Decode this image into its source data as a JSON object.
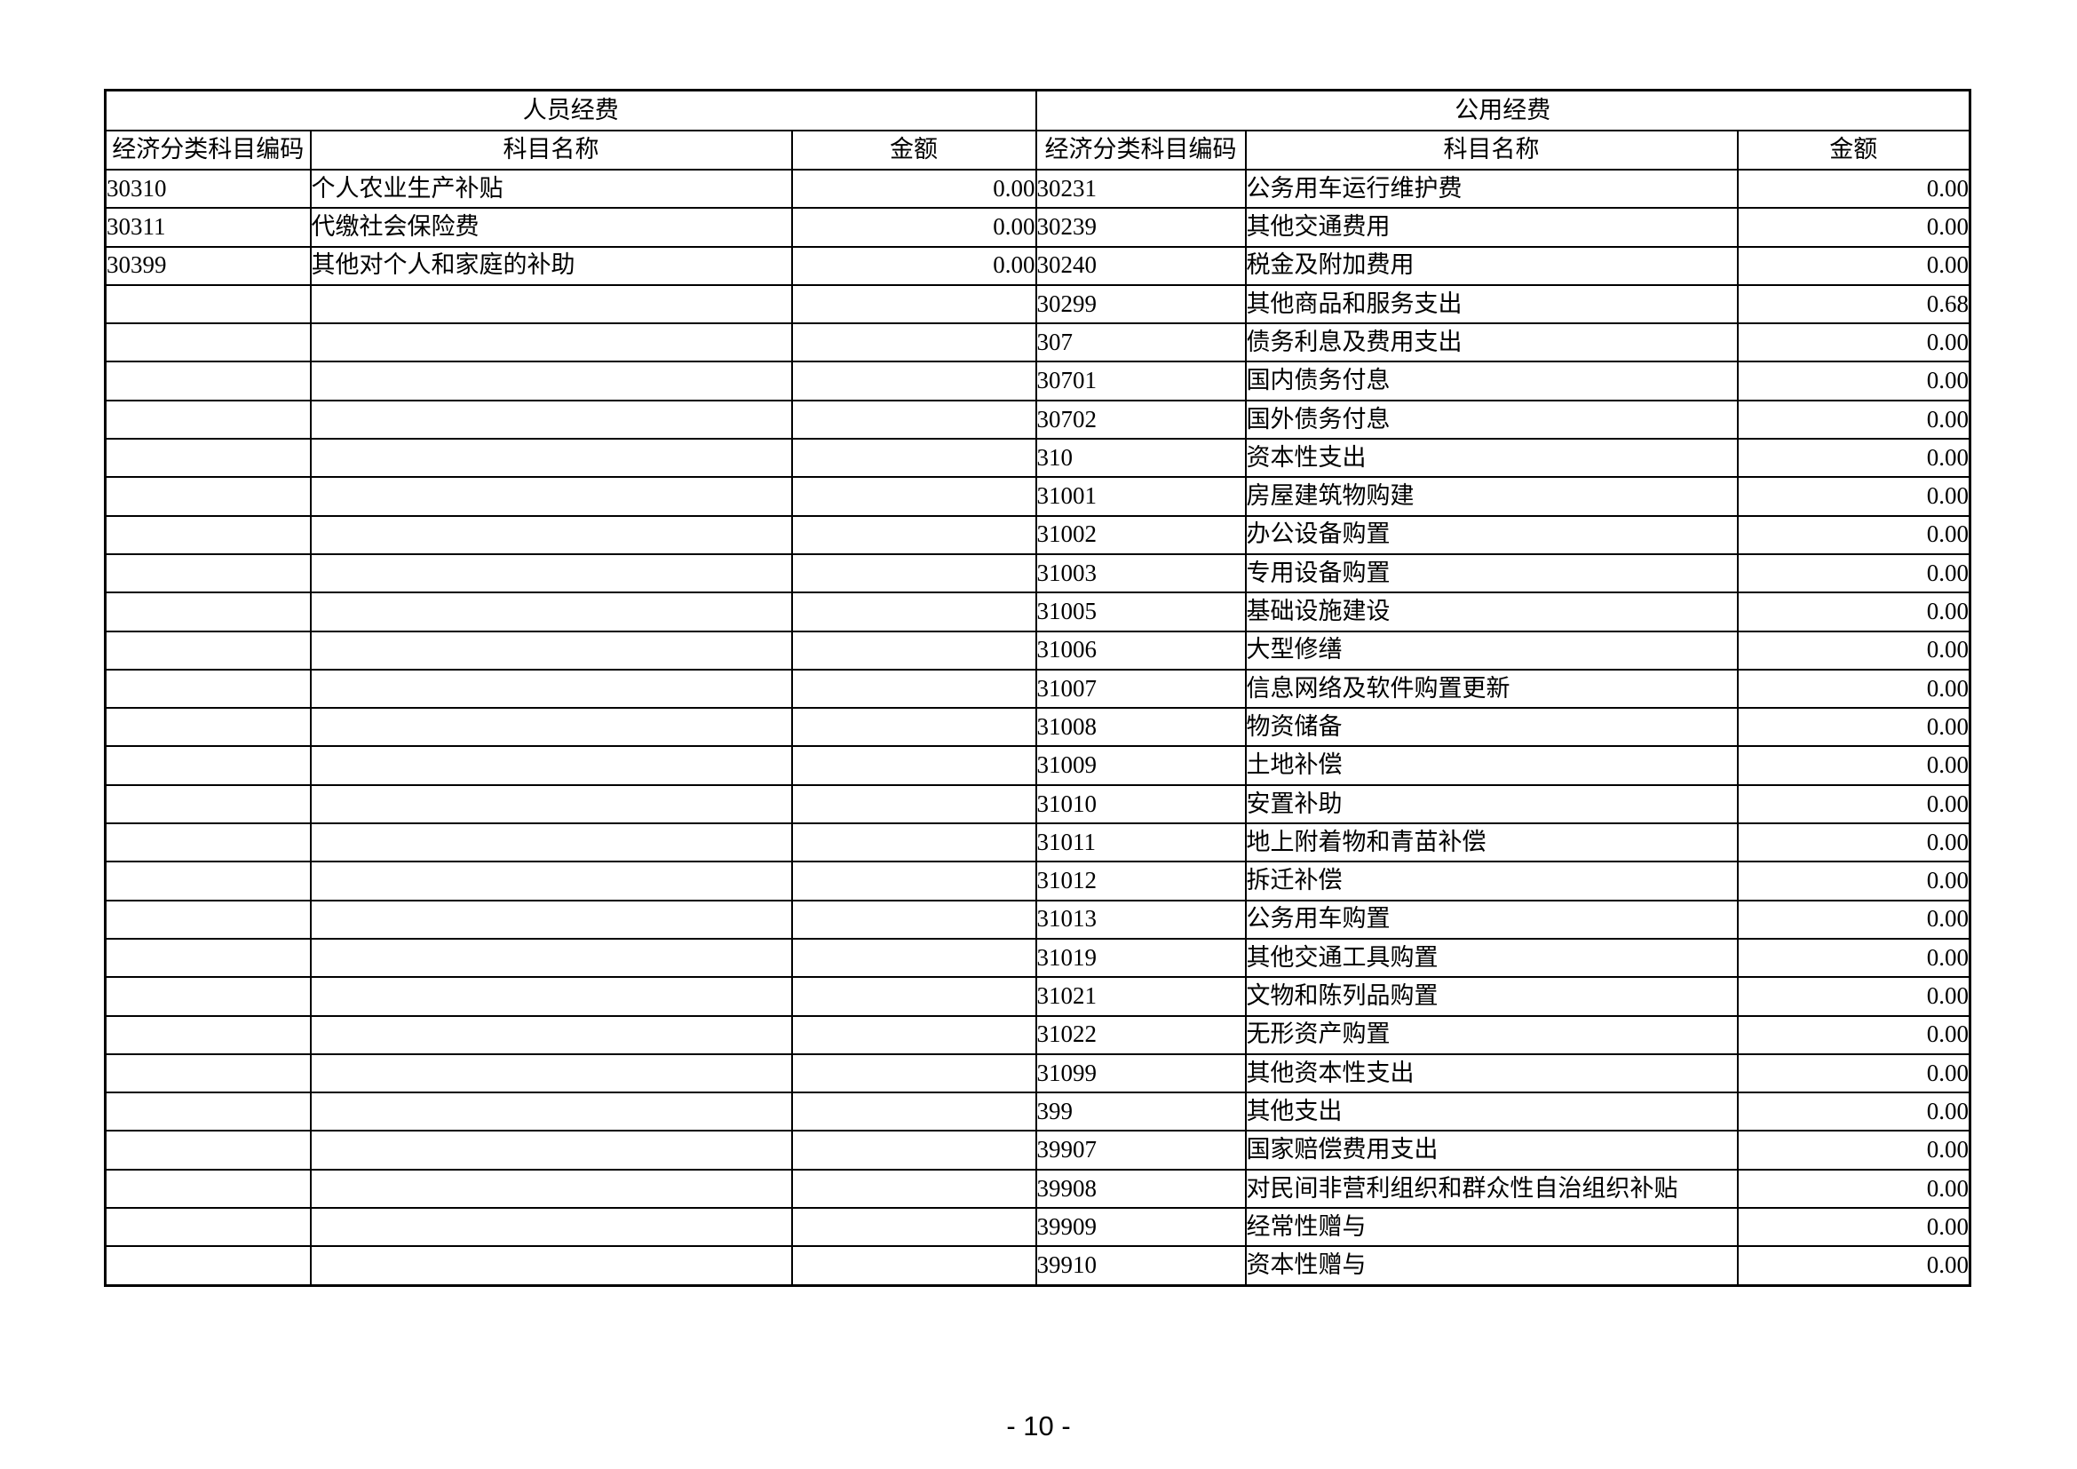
{
  "page": {
    "footer": "- 10 -"
  },
  "table": {
    "row_count": 29,
    "left": {
      "title": "人员经费",
      "headers": [
        "经济分类科目编码",
        "科目名称",
        "金额"
      ],
      "rows": [
        {
          "code": "30310",
          "name": "个人农业生产补贴",
          "amount": "0.00"
        },
        {
          "code": "30311",
          "name": "代缴社会保险费",
          "amount": "0.00"
        },
        {
          "code": "30399",
          "name": "其他对个人和家庭的补助",
          "amount": "0.00"
        }
      ]
    },
    "right": {
      "title": "公用经费",
      "headers": [
        "经济分类科目编码",
        "科目名称",
        "金额"
      ],
      "rows": [
        {
          "code": "30231",
          "name": "公务用车运行维护费",
          "amount": "0.00"
        },
        {
          "code": "30239",
          "name": "其他交通费用",
          "amount": "0.00"
        },
        {
          "code": "30240",
          "name": "税金及附加费用",
          "amount": "0.00"
        },
        {
          "code": "30299",
          "name": "其他商品和服务支出",
          "amount": "0.68"
        },
        {
          "code": "307",
          "name": "债务利息及费用支出",
          "amount": "0.00"
        },
        {
          "code": "30701",
          "name": "国内债务付息",
          "amount": "0.00"
        },
        {
          "code": "30702",
          "name": "国外债务付息",
          "amount": "0.00"
        },
        {
          "code": "310",
          "name": "资本性支出",
          "amount": "0.00"
        },
        {
          "code": "31001",
          "name": "房屋建筑物购建",
          "amount": "0.00"
        },
        {
          "code": "31002",
          "name": "办公设备购置",
          "amount": "0.00"
        },
        {
          "code": "31003",
          "name": "专用设备购置",
          "amount": "0.00"
        },
        {
          "code": "31005",
          "name": "基础设施建设",
          "amount": "0.00"
        },
        {
          "code": "31006",
          "name": "大型修缮",
          "amount": "0.00"
        },
        {
          "code": "31007",
          "name": "信息网络及软件购置更新",
          "amount": "0.00"
        },
        {
          "code": "31008",
          "name": "物资储备",
          "amount": "0.00"
        },
        {
          "code": "31009",
          "name": "土地补偿",
          "amount": "0.00"
        },
        {
          "code": "31010",
          "name": "安置补助",
          "amount": "0.00"
        },
        {
          "code": "31011",
          "name": "地上附着物和青苗补偿",
          "amount": "0.00"
        },
        {
          "code": "31012",
          "name": "拆迁补偿",
          "amount": "0.00"
        },
        {
          "code": "31013",
          "name": "公务用车购置",
          "amount": "0.00"
        },
        {
          "code": "31019",
          "name": "其他交通工具购置",
          "amount": "0.00"
        },
        {
          "code": "31021",
          "name": "文物和陈列品购置",
          "amount": "0.00"
        },
        {
          "code": "31022",
          "name": "无形资产购置",
          "amount": "0.00"
        },
        {
          "code": "31099",
          "name": "其他资本性支出",
          "amount": "0.00"
        },
        {
          "code": "399",
          "name": "其他支出",
          "amount": "0.00"
        },
        {
          "code": "39907",
          "name": "国家赔偿费用支出",
          "amount": "0.00"
        },
        {
          "code": "39908",
          "name": "对民间非营利组织和群众性自治组织补贴",
          "amount": "0.00"
        },
        {
          "code": "39909",
          "name": "经常性赠与",
          "amount": "0.00"
        },
        {
          "code": "39910",
          "name": "资本性赠与",
          "amount": "0.00"
        }
      ]
    }
  }
}
